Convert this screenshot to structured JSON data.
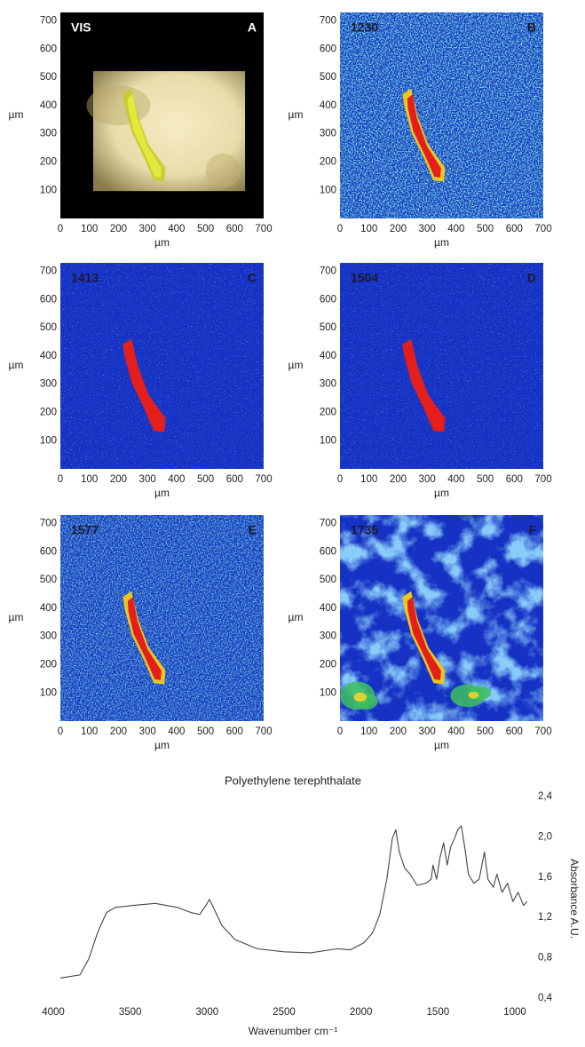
{
  "panels": {
    "xlim": [
      0,
      700
    ],
    "ylim": [
      0,
      730
    ],
    "xticks": [
      0,
      100,
      200,
      300,
      400,
      500,
      600,
      700
    ],
    "yticks": [
      100,
      200,
      300,
      400,
      500,
      600,
      700
    ],
    "xlabel": "µm",
    "ylabel": "µm",
    "items": [
      {
        "label": "VIS",
        "letter": "A"
      },
      {
        "label": "1230",
        "letter": "B"
      },
      {
        "label": "1413",
        "letter": "C"
      },
      {
        "label": "1504",
        "letter": "D"
      },
      {
        "label": "1577",
        "letter": "E"
      },
      {
        "label": "1735",
        "letter": "F"
      }
    ]
  },
  "chart_data": {
    "type": "line",
    "title": "Polyethylene terephthalate",
    "xlabel": "Wavenumber cm⁻¹",
    "ylabel": "Absorbance A.U.",
    "color": "#444444",
    "x": [
      3954,
      3827,
      3769,
      3712,
      3654,
      3596,
      3481,
      3337,
      3193,
      3106,
      3048,
      3008,
      2985,
      2950,
      2904,
      2818,
      2674,
      2500,
      2327,
      2154,
      2068,
      1981,
      1924,
      1878,
      1832,
      1797,
      1774,
      1751,
      1716,
      1681,
      1636,
      1578,
      1544,
      1532,
      1509,
      1486,
      1463,
      1440,
      1417,
      1394,
      1371,
      1348,
      1325,
      1302,
      1267,
      1232,
      1198,
      1175,
      1140,
      1117,
      1083,
      1048,
      1013,
      979,
      944,
      921
    ],
    "values": [
      0.6,
      0.63,
      0.79,
      1.05,
      1.25,
      1.3,
      1.32,
      1.34,
      1.3,
      1.25,
      1.23,
      1.32,
      1.38,
      1.27,
      1.12,
      0.98,
      0.89,
      0.86,
      0.85,
      0.89,
      0.88,
      0.95,
      1.05,
      1.23,
      1.58,
      1.98,
      2.07,
      1.85,
      1.69,
      1.63,
      1.52,
      1.54,
      1.58,
      1.72,
      1.58,
      1.8,
      1.94,
      1.72,
      1.9,
      1.98,
      2.07,
      2.11,
      1.89,
      1.63,
      1.54,
      1.58,
      1.85,
      1.58,
      1.5,
      1.63,
      1.45,
      1.54,
      1.36,
      1.45,
      1.32,
      1.36
    ],
    "xlim": [
      4000,
      1000
    ],
    "xticks": [
      4000,
      3500,
      3000,
      2500,
      2000,
      1500,
      1000
    ],
    "ylim": [
      0.4,
      2.4
    ],
    "yticks": [
      {
        "value": 0.4,
        "label": "0,4"
      },
      {
        "value": 0.8,
        "label": "0,8"
      },
      {
        "value": 1.2,
        "label": "1,2"
      },
      {
        "value": 1.6,
        "label": "1,6"
      },
      {
        "value": 2.0,
        "label": "2,0"
      },
      {
        "value": 2.4,
        "label": "2,4"
      }
    ],
    "grid": false
  }
}
